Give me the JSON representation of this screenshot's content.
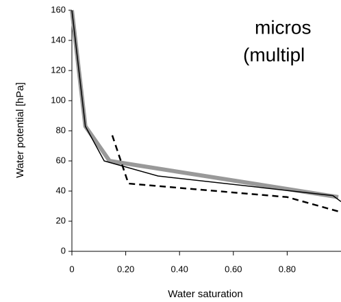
{
  "chart_data": {
    "type": "line",
    "annotations": [
      "micros",
      "(multipl"
    ],
    "x_label": "Water saturation",
    "y_label": "Water potential [hPa]",
    "xlim": [
      0,
      1.0
    ],
    "ylim": [
      0,
      160
    ],
    "xticks": [
      0,
      {
        "value": 0.2,
        "label": "0.20"
      },
      {
        "value": 0.4,
        "label": "0.40"
      },
      {
        "value": 0.6,
        "label": "0.60"
      },
      {
        "value": 0.8,
        "label": "0.80"
      }
    ],
    "yticks": [
      0,
      20,
      40,
      60,
      80,
      100,
      120,
      140,
      160
    ],
    "series": [
      {
        "color": "#999999",
        "width": 6,
        "dash": false,
        "x": [
          0,
          0.05,
          0.14,
          0.99
        ],
        "values": [
          160,
          83,
          60,
          36
        ]
      },
      {
        "color": "#000000",
        "width": 1.5,
        "dash": false,
        "x": [
          0,
          0.05,
          0.12,
          0.32,
          0.97,
          1.0
        ],
        "values": [
          160,
          83,
          60,
          50,
          37,
          33
        ]
      },
      {
        "color": "#000000",
        "width": 2.5,
        "dash": true,
        "x": [
          0.15,
          0.21,
          0.8,
          1.0
        ],
        "values": [
          77,
          45,
          36,
          26
        ]
      }
    ]
  }
}
